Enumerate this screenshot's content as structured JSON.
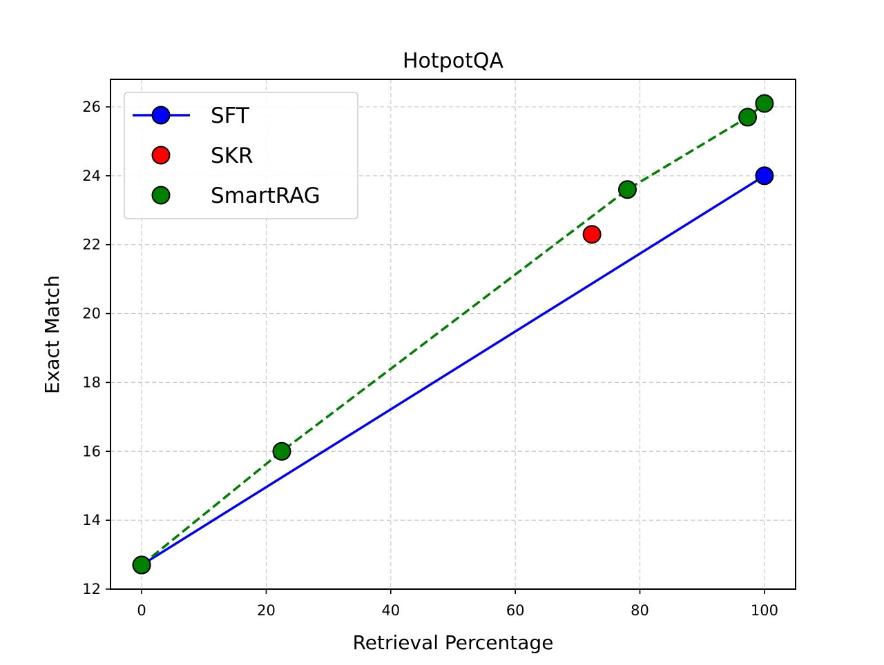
{
  "chart_data": {
    "type": "line",
    "title": "HotpotQA",
    "xlabel": "Retrieval Percentage",
    "ylabel": "Exact Match",
    "xlim": [
      -5,
      105
    ],
    "ylim": [
      12,
      26.8
    ],
    "xticks": [
      0,
      20,
      40,
      60,
      80,
      100
    ],
    "yticks": [
      12,
      14,
      16,
      18,
      20,
      22,
      24,
      26
    ],
    "grid": true,
    "legend_position": "top-left",
    "series": [
      {
        "name": "SFT",
        "style": "solid-line-with-markers",
        "color": "#0000ff",
        "x": [
          0,
          100
        ],
        "y": [
          12.7,
          24.0
        ]
      },
      {
        "name": "SKR",
        "style": "markers-only",
        "color": "#ff0000",
        "x": [
          72.3
        ],
        "y": [
          22.3
        ]
      },
      {
        "name": "SmartRAG",
        "style": "dashed-line-with-markers",
        "color": "#008000",
        "x": [
          0,
          22.5,
          78.0,
          97.3,
          100
        ],
        "y": [
          12.7,
          16.0,
          23.6,
          25.7,
          26.1
        ]
      }
    ]
  }
}
